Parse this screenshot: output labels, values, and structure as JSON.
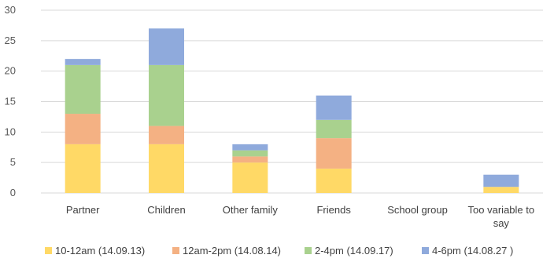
{
  "chart_data": {
    "type": "bar",
    "stacked": true,
    "title": "",
    "xlabel": "",
    "ylabel": "",
    "ylim": [
      0,
      30
    ],
    "yticks": [
      0,
      5,
      10,
      15,
      20,
      25,
      30
    ],
    "grid": true,
    "legend_position": "bottom",
    "categories": [
      [
        "Partner"
      ],
      [
        "Children"
      ],
      [
        "Other  family"
      ],
      [
        "Friends"
      ],
      [
        "School group"
      ],
      [
        "Too variable to",
        "say"
      ]
    ],
    "series": [
      {
        "name": "10-12am (14.09.13)",
        "color": "#ffd966",
        "values": [
          8,
          8,
          5,
          4,
          0,
          1
        ]
      },
      {
        "name": "12am-2pm (14.08.14)",
        "color": "#f4b183",
        "values": [
          5,
          3,
          1,
          5,
          0,
          0
        ]
      },
      {
        "name": "2-4pm (14.09.17)",
        "color": "#a9d18e",
        "values": [
          8,
          10,
          1,
          3,
          0,
          0
        ]
      },
      {
        "name": "4-6pm (14.08.27 )",
        "color": "#8faadc",
        "values": [
          1,
          6,
          1,
          4,
          0,
          2
        ]
      }
    ]
  }
}
